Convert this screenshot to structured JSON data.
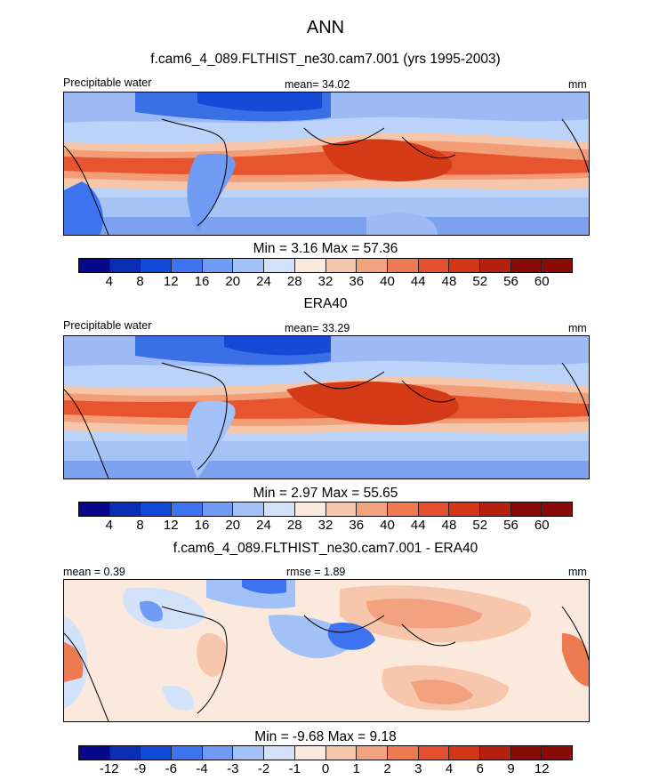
{
  "figure_title": "ANN",
  "colors": [
    "#08088a",
    "#0a2fb5",
    "#1049d8",
    "#3d73ee",
    "#6f9bf2",
    "#a2c1f6",
    "#d2e2fb",
    "#fbe9dd",
    "#f7c7ad",
    "#f3a27f",
    "#ee7a52",
    "#e4502f",
    "#d23617",
    "#b5210e",
    "#8a0a08"
  ],
  "chart_data": [
    {
      "type": "heatmap",
      "title": "f.cam6_4_089.FLTHIST_ne30.cam7.001 (yrs 1995-2003)",
      "left_label": "Precipitable water",
      "center_label": "mean=  34.02",
      "units": "mm",
      "stats": "Min =   3.16 Max =  57.36",
      "levels": [
        "4",
        "8",
        "12",
        "16",
        "20",
        "24",
        "28",
        "32",
        "36",
        "40",
        "44",
        "48",
        "52",
        "56",
        "60"
      ]
    },
    {
      "type": "heatmap",
      "title": "ERA40",
      "left_label": "Precipitable water",
      "center_label": "mean=  33.29",
      "units": "mm",
      "stats": "Min =   2.97 Max =  55.65",
      "levels": [
        "4",
        "8",
        "12",
        "16",
        "20",
        "24",
        "28",
        "32",
        "36",
        "40",
        "44",
        "48",
        "52",
        "56",
        "60"
      ]
    },
    {
      "type": "heatmap",
      "title": "f.cam6_4_089.FLTHIST_ne30.cam7.001 - ERA40",
      "left_label": "mean =   0.39",
      "center_label": "rmse =   1.89",
      "units": "mm",
      "stats": "Min =  -9.68 Max =   9.18",
      "levels": [
        "-12",
        "-9",
        "-6",
        "-4",
        "-3",
        "-2",
        "-1",
        "0",
        "1",
        "2",
        "3",
        "4",
        "6",
        "9",
        "12"
      ]
    }
  ]
}
